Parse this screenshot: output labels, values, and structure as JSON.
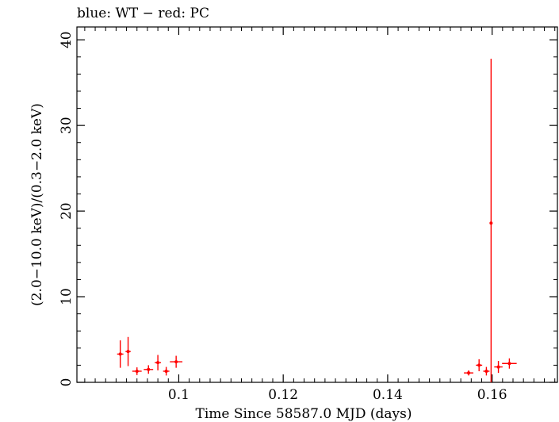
{
  "chart_data": {
    "type": "scatter",
    "title": "blue: WT − red: PC",
    "xlabel": "Time Since 58587.0 MJD (days)",
    "ylabel": "(2.0−10.0 keV)/(0.3−2.0 keV)",
    "xlim": [
      0.0805,
      0.1725
    ],
    "ylim": [
      0,
      41.5
    ],
    "x_ticks": [
      0.1,
      0.12,
      0.14,
      0.16
    ],
    "x_tick_labels": [
      "0.1",
      "0.12",
      "0.14",
      "0.16"
    ],
    "y_ticks": [
      0,
      10,
      20,
      30,
      40
    ],
    "y_tick_labels": [
      "0",
      "10",
      "20",
      "30",
      "40"
    ],
    "grid": false,
    "series": [
      {
        "name": "PC",
        "color": "#ff0000",
        "points": [
          {
            "x": 0.0888,
            "y": 3.3,
            "xerr": 0.0006,
            "yerr": 1.6
          },
          {
            "x": 0.0903,
            "y": 3.6,
            "xerr": 0.0005,
            "yerr": 1.7
          },
          {
            "x": 0.092,
            "y": 1.3,
            "xerr": 0.0009,
            "yerr": 0.45
          },
          {
            "x": 0.0942,
            "y": 1.5,
            "xerr": 0.0009,
            "yerr": 0.5
          },
          {
            "x": 0.096,
            "y": 2.3,
            "xerr": 0.0006,
            "yerr": 0.9
          },
          {
            "x": 0.0976,
            "y": 1.3,
            "xerr": 0.0006,
            "yerr": 0.5
          },
          {
            "x": 0.0995,
            "y": 2.4,
            "xerr": 0.0012,
            "yerr": 0.7
          },
          {
            "x": 0.1555,
            "y": 1.1,
            "xerr": 0.0009,
            "yerr": 0.3
          },
          {
            "x": 0.1575,
            "y": 2.0,
            "xerr": 0.0006,
            "yerr": 0.7
          },
          {
            "x": 0.1589,
            "y": 1.3,
            "xerr": 0.0006,
            "yerr": 0.5
          },
          {
            "x": 0.1598,
            "y": 18.6,
            "xerr": 0.0002,
            "yerr_low": 18.6,
            "yerr_high": 19.2
          },
          {
            "x": 0.1612,
            "y": 1.8,
            "xerr": 0.0008,
            "yerr": 0.7
          },
          {
            "x": 0.1633,
            "y": 2.2,
            "xerr": 0.0014,
            "yerr": 0.6
          }
        ]
      }
    ]
  }
}
